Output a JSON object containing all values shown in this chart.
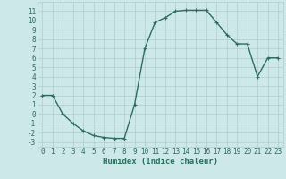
{
  "x": [
    0,
    1,
    2,
    3,
    4,
    5,
    6,
    7,
    8,
    9,
    10,
    11,
    12,
    13,
    14,
    15,
    16,
    17,
    18,
    19,
    20,
    21,
    22,
    23
  ],
  "y": [
    2,
    2,
    0,
    -1,
    -1.8,
    -2.3,
    -2.5,
    -2.6,
    -2.6,
    1.0,
    7.0,
    9.8,
    10.3,
    11.0,
    11.1,
    11.1,
    11.1,
    9.8,
    8.5,
    7.5,
    7.5,
    4.0,
    6.0,
    6.0
  ],
  "line_color": "#2d6e5e",
  "marker": "+",
  "marker_size": 3,
  "background_color": "#cce8e8",
  "grid_color": "#b0cccc",
  "xlabel": "Humidex (Indice chaleur)",
  "xlim": [
    -0.5,
    23.5
  ],
  "ylim": [
    -3.5,
    12.0
  ],
  "yticks": [
    -3,
    -2,
    -1,
    0,
    1,
    2,
    3,
    4,
    5,
    6,
    7,
    8,
    9,
    10,
    11
  ],
  "xticks": [
    0,
    1,
    2,
    3,
    4,
    5,
    6,
    7,
    8,
    9,
    10,
    11,
    12,
    13,
    14,
    15,
    16,
    17,
    18,
    19,
    20,
    21,
    22,
    23
  ],
  "tick_label_fontsize": 5.5,
  "xlabel_fontsize": 6.5,
  "line_width": 1.0,
  "markeredgewidth": 0.8
}
